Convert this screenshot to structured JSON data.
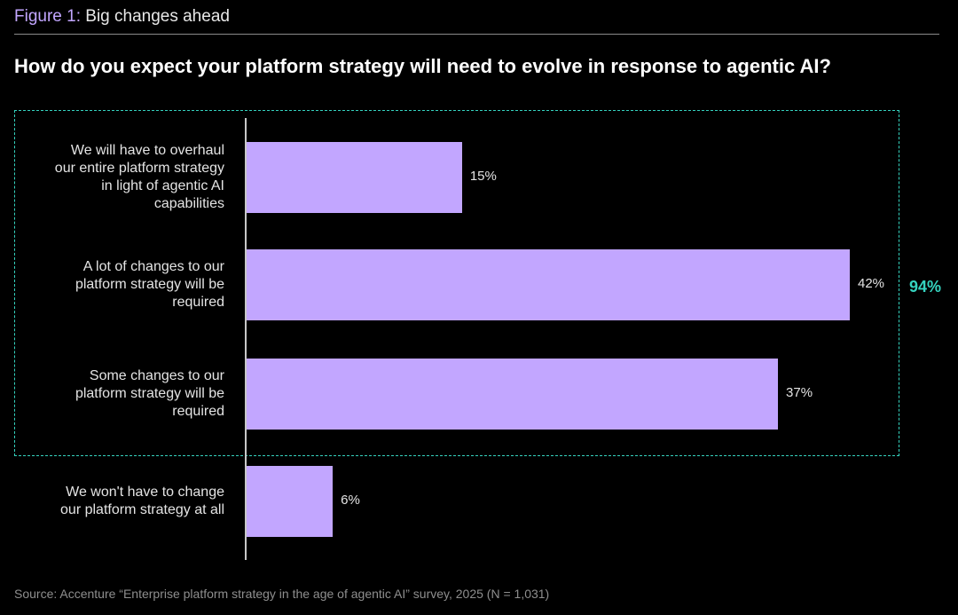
{
  "header": {
    "figure_label": "Figure 1:",
    "figure_title": "Big changes ahead",
    "question": "How do you expect your platform strategy will need to evolve in response to agentic AI?"
  },
  "chart_data": {
    "type": "bar",
    "orientation": "horizontal",
    "title": "How do you expect your platform strategy will need to evolve in response to agentic AI?",
    "categories": [
      "We will have to overhaul our entire platform strategy in light of agentic AI capabilities",
      "A lot of changes to our platform strategy will be required",
      "Some changes to our platform strategy will be required",
      "We won't have to change our platform strategy at all"
    ],
    "values": [
      15,
      42,
      37,
      6
    ],
    "value_labels": [
      "15%",
      "42%",
      "37%",
      "6%"
    ],
    "unit": "%",
    "xlim": [
      0,
      45
    ],
    "grid": false,
    "annotation": {
      "text": "94%",
      "covers_categories": [
        0,
        1,
        2
      ],
      "color": "#35d3bf"
    },
    "bar_color": "#c2a6ff"
  },
  "footer": {
    "source": "Source: Accenture “Enterprise platform strategy in the age of agentic AI” survey, 2025 (N = 1,031)"
  }
}
